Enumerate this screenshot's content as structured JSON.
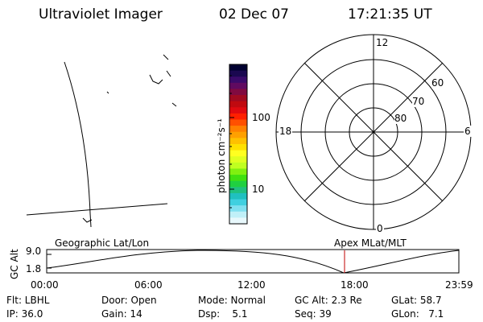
{
  "header": {
    "title": "Ultraviolet Imager",
    "date": "02 Dec 07",
    "time": "17:21:35 UT"
  },
  "colorbar": {
    "unit_label": "photon cm⁻²s⁻¹",
    "ticks": [
      "100",
      "10"
    ],
    "colors": [
      "#000030",
      "#1a0850",
      "#3a0a6a",
      "#600a60",
      "#800a40",
      "#a00a20",
      "#c00a10",
      "#e00a10",
      "#ff2000",
      "#ff5000",
      "#ff8000",
      "#ffa000",
      "#ffc000",
      "#ffe000",
      "#ffff20",
      "#e0ff20",
      "#c0ff20",
      "#80f010",
      "#40e010",
      "#20d040",
      "#20c080",
      "#20c0c0",
      "#40d0e0",
      "#80e0f0",
      "#c0f0f8",
      "#e8f8fc"
    ]
  },
  "polar": {
    "top_label": "12",
    "bottom_label": "0",
    "left_label": "18",
    "right_label": "6",
    "ring_labels": [
      "60",
      "70",
      "80"
    ]
  },
  "timeline": {
    "axis_label": "GC Alt",
    "y_high": "9.0",
    "y_low": "1.8",
    "left_title": "Geographic Lat/Lon",
    "right_title": "Apex MLat/MLT",
    "times": [
      "00:00",
      "06:00",
      "12:00",
      "18:00",
      "23:59"
    ]
  },
  "footer": {
    "filter": "Flt: LBHL",
    "door": "Door: Open",
    "mode": "Mode: Normal",
    "gc_alt": "GC Alt: 2.3 Re",
    "glat": "GLat: 58.7",
    "ip": "IP: 36.0",
    "gain": "Gain: 14",
    "dsp": "Dsp:    5.1",
    "seq": "Seq: 39",
    "glon": "GLon:   7.1"
  }
}
